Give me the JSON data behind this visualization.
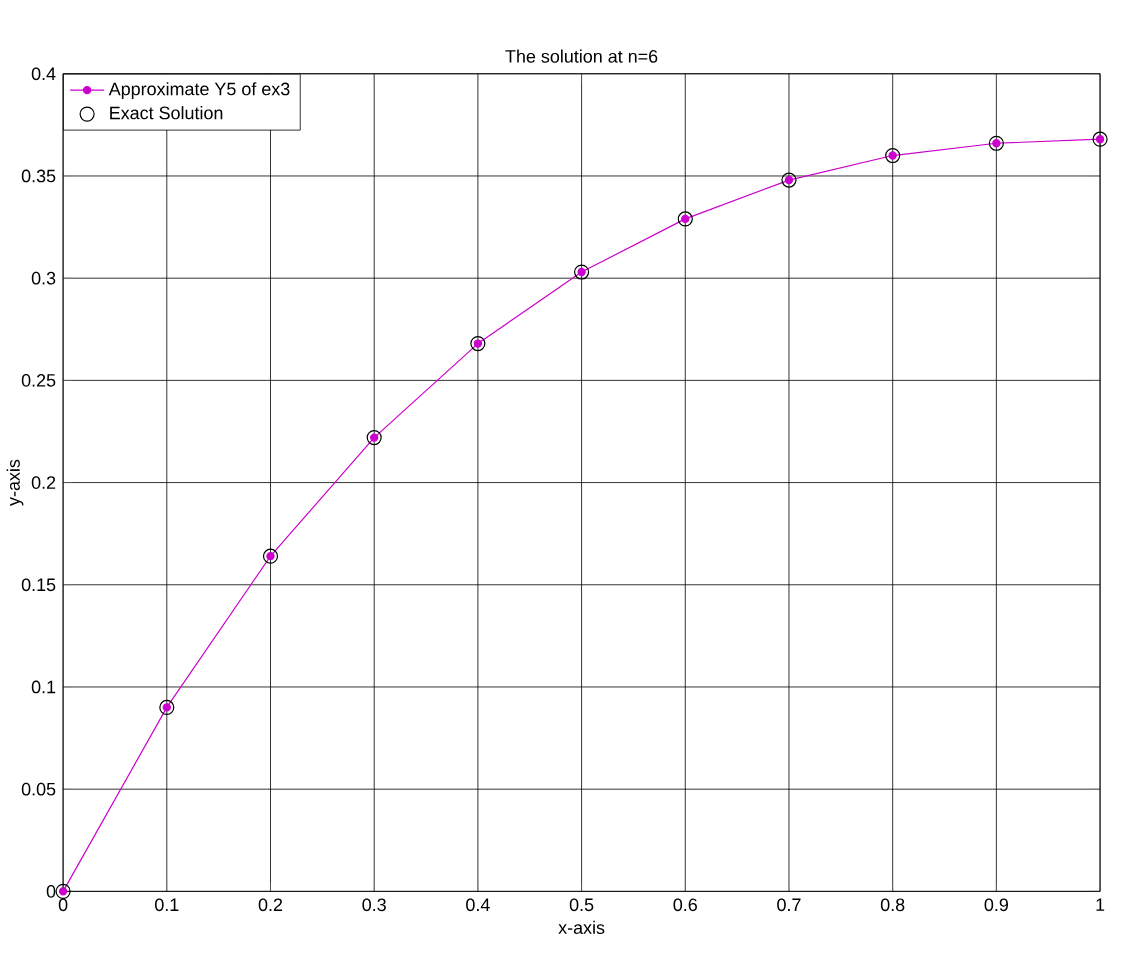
{
  "chart_data": {
    "type": "line",
    "title": "The solution at n=6",
    "xlabel": "x-axis",
    "ylabel": "y-axis",
    "x": [
      0,
      0.1,
      0.2,
      0.3,
      0.4,
      0.5,
      0.6,
      0.7,
      0.8,
      0.9,
      1
    ],
    "series": [
      {
        "name": "Approximate Y5 of ex3",
        "color": "#cc00cc",
        "marker": "circle",
        "values": [
          0,
          0.09,
          0.164,
          0.222,
          0.268,
          0.303,
          0.329,
          0.348,
          0.36,
          0.366,
          0.368
        ]
      },
      {
        "name": "Exact Solution",
        "color": "#000000",
        "type": "scatter",
        "marker": "circle",
        "values": [
          0,
          0.09,
          0.164,
          0.222,
          0.268,
          0.303,
          0.329,
          0.348,
          0.36,
          0.366,
          0.368
        ]
      }
    ],
    "xlim": [
      0,
      1
    ],
    "ylim": [
      0,
      0.4
    ],
    "xticks": [
      0,
      0.1,
      0.2,
      0.3,
      0.4,
      0.5,
      0.6,
      0.7,
      0.8,
      0.9,
      1
    ],
    "yticks": [
      0,
      0.05,
      0.1,
      0.15,
      0.2,
      0.25,
      0.3,
      0.35,
      0.4
    ],
    "grid": true,
    "legend": "top left"
  }
}
